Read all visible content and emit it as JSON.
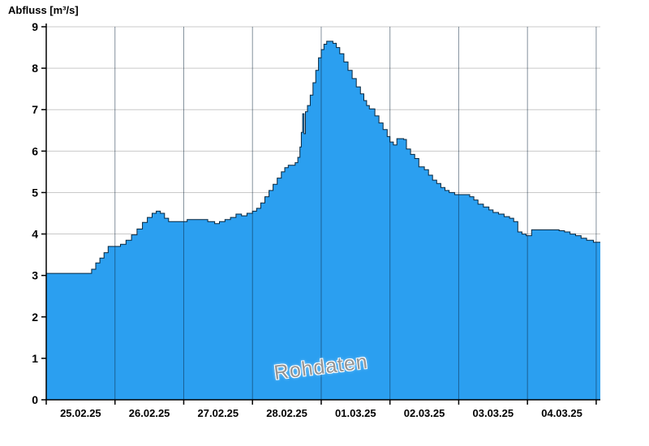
{
  "chart_data": {
    "type": "area",
    "title": "",
    "ylabel": "Abfluss [m³/s]",
    "xlabel": "",
    "watermark": "Rohdaten",
    "legend": [],
    "grid": true,
    "x_unit": "days",
    "x_range": [
      0,
      8.06
    ],
    "ylim": [
      0,
      9
    ],
    "y_ticks": [
      0,
      1,
      2,
      3,
      4,
      5,
      6,
      7,
      8,
      9
    ],
    "x_labels": [
      "25.02.25",
      "26.02.25",
      "27.02.25",
      "28.02.25",
      "01.03.25",
      "02.03.25",
      "03.03.25",
      "04.03.25"
    ],
    "day_boundaries": [
      0,
      1,
      2,
      3,
      4,
      5,
      6,
      7,
      8
    ],
    "series_name": "Abfluss Rohdaten",
    "points": [
      [
        0.0,
        3.05
      ],
      [
        0.66,
        3.15
      ],
      [
        0.72,
        3.3
      ],
      [
        0.78,
        3.42
      ],
      [
        0.84,
        3.55
      ],
      [
        0.9,
        3.7
      ],
      [
        1.08,
        3.75
      ],
      [
        1.16,
        3.85
      ],
      [
        1.24,
        3.98
      ],
      [
        1.32,
        4.12
      ],
      [
        1.4,
        4.28
      ],
      [
        1.47,
        4.4
      ],
      [
        1.54,
        4.5
      ],
      [
        1.6,
        4.55
      ],
      [
        1.66,
        4.5
      ],
      [
        1.72,
        4.38
      ],
      [
        1.78,
        4.3
      ],
      [
        2.05,
        4.35
      ],
      [
        2.35,
        4.3
      ],
      [
        2.45,
        4.25
      ],
      [
        2.52,
        4.3
      ],
      [
        2.6,
        4.35
      ],
      [
        2.68,
        4.4
      ],
      [
        2.76,
        4.48
      ],
      [
        2.84,
        4.44
      ],
      [
        2.92,
        4.5
      ],
      [
        3.0,
        4.55
      ],
      [
        3.06,
        4.62
      ],
      [
        3.12,
        4.75
      ],
      [
        3.18,
        4.9
      ],
      [
        3.24,
        5.05
      ],
      [
        3.3,
        5.2
      ],
      [
        3.36,
        5.35
      ],
      [
        3.42,
        5.5
      ],
      [
        3.47,
        5.6
      ],
      [
        3.52,
        5.66
      ],
      [
        3.62,
        5.72
      ],
      [
        3.66,
        5.85
      ],
      [
        3.69,
        6.1
      ],
      [
        3.71,
        6.45
      ],
      [
        3.73,
        6.9
      ],
      [
        3.75,
        6.42
      ],
      [
        3.77,
        6.95
      ],
      [
        3.8,
        7.1
      ],
      [
        3.84,
        7.35
      ],
      [
        3.88,
        7.65
      ],
      [
        3.92,
        7.95
      ],
      [
        3.96,
        8.25
      ],
      [
        4.0,
        8.45
      ],
      [
        4.04,
        8.58
      ],
      [
        4.08,
        8.65
      ],
      [
        4.17,
        8.6
      ],
      [
        4.22,
        8.5
      ],
      [
        4.27,
        8.35
      ],
      [
        4.33,
        8.15
      ],
      [
        4.39,
        7.95
      ],
      [
        4.45,
        7.75
      ],
      [
        4.51,
        7.55
      ],
      [
        4.57,
        7.38
      ],
      [
        4.62,
        7.22
      ],
      [
        4.66,
        7.1
      ],
      [
        4.7,
        7.02
      ],
      [
        4.78,
        6.85
      ],
      [
        4.84,
        6.68
      ],
      [
        4.9,
        6.52
      ],
      [
        4.96,
        6.35
      ],
      [
        5.0,
        6.22
      ],
      [
        5.05,
        6.15
      ],
      [
        5.1,
        6.3
      ],
      [
        5.2,
        6.28
      ],
      [
        5.24,
        6.05
      ],
      [
        5.3,
        5.92
      ],
      [
        5.36,
        5.82
      ],
      [
        5.42,
        5.62
      ],
      [
        5.5,
        5.55
      ],
      [
        5.56,
        5.42
      ],
      [
        5.62,
        5.3
      ],
      [
        5.68,
        5.22
      ],
      [
        5.74,
        5.12
      ],
      [
        5.8,
        5.05
      ],
      [
        5.86,
        5.0
      ],
      [
        5.94,
        4.95
      ],
      [
        6.16,
        4.9
      ],
      [
        6.22,
        4.82
      ],
      [
        6.28,
        4.72
      ],
      [
        6.36,
        4.65
      ],
      [
        6.44,
        4.58
      ],
      [
        6.5,
        4.52
      ],
      [
        6.58,
        4.48
      ],
      [
        6.66,
        4.42
      ],
      [
        6.74,
        4.38
      ],
      [
        6.8,
        4.3
      ],
      [
        6.86,
        4.05
      ],
      [
        6.92,
        4.0
      ],
      [
        6.98,
        3.96
      ],
      [
        7.06,
        4.1
      ],
      [
        7.46,
        4.08
      ],
      [
        7.54,
        4.05
      ],
      [
        7.62,
        4.0
      ],
      [
        7.7,
        3.96
      ],
      [
        7.78,
        3.9
      ],
      [
        7.86,
        3.85
      ],
      [
        7.96,
        3.8
      ],
      [
        8.06,
        3.8
      ]
    ],
    "colors": {
      "area": "#2b9ff0",
      "outline": "#06263e",
      "grid": "#c9c9c9",
      "day_line": "rgba(10,35,60,0.5)",
      "axis": "#000000",
      "watermark": "#949494",
      "background": "#ffffff"
    }
  }
}
